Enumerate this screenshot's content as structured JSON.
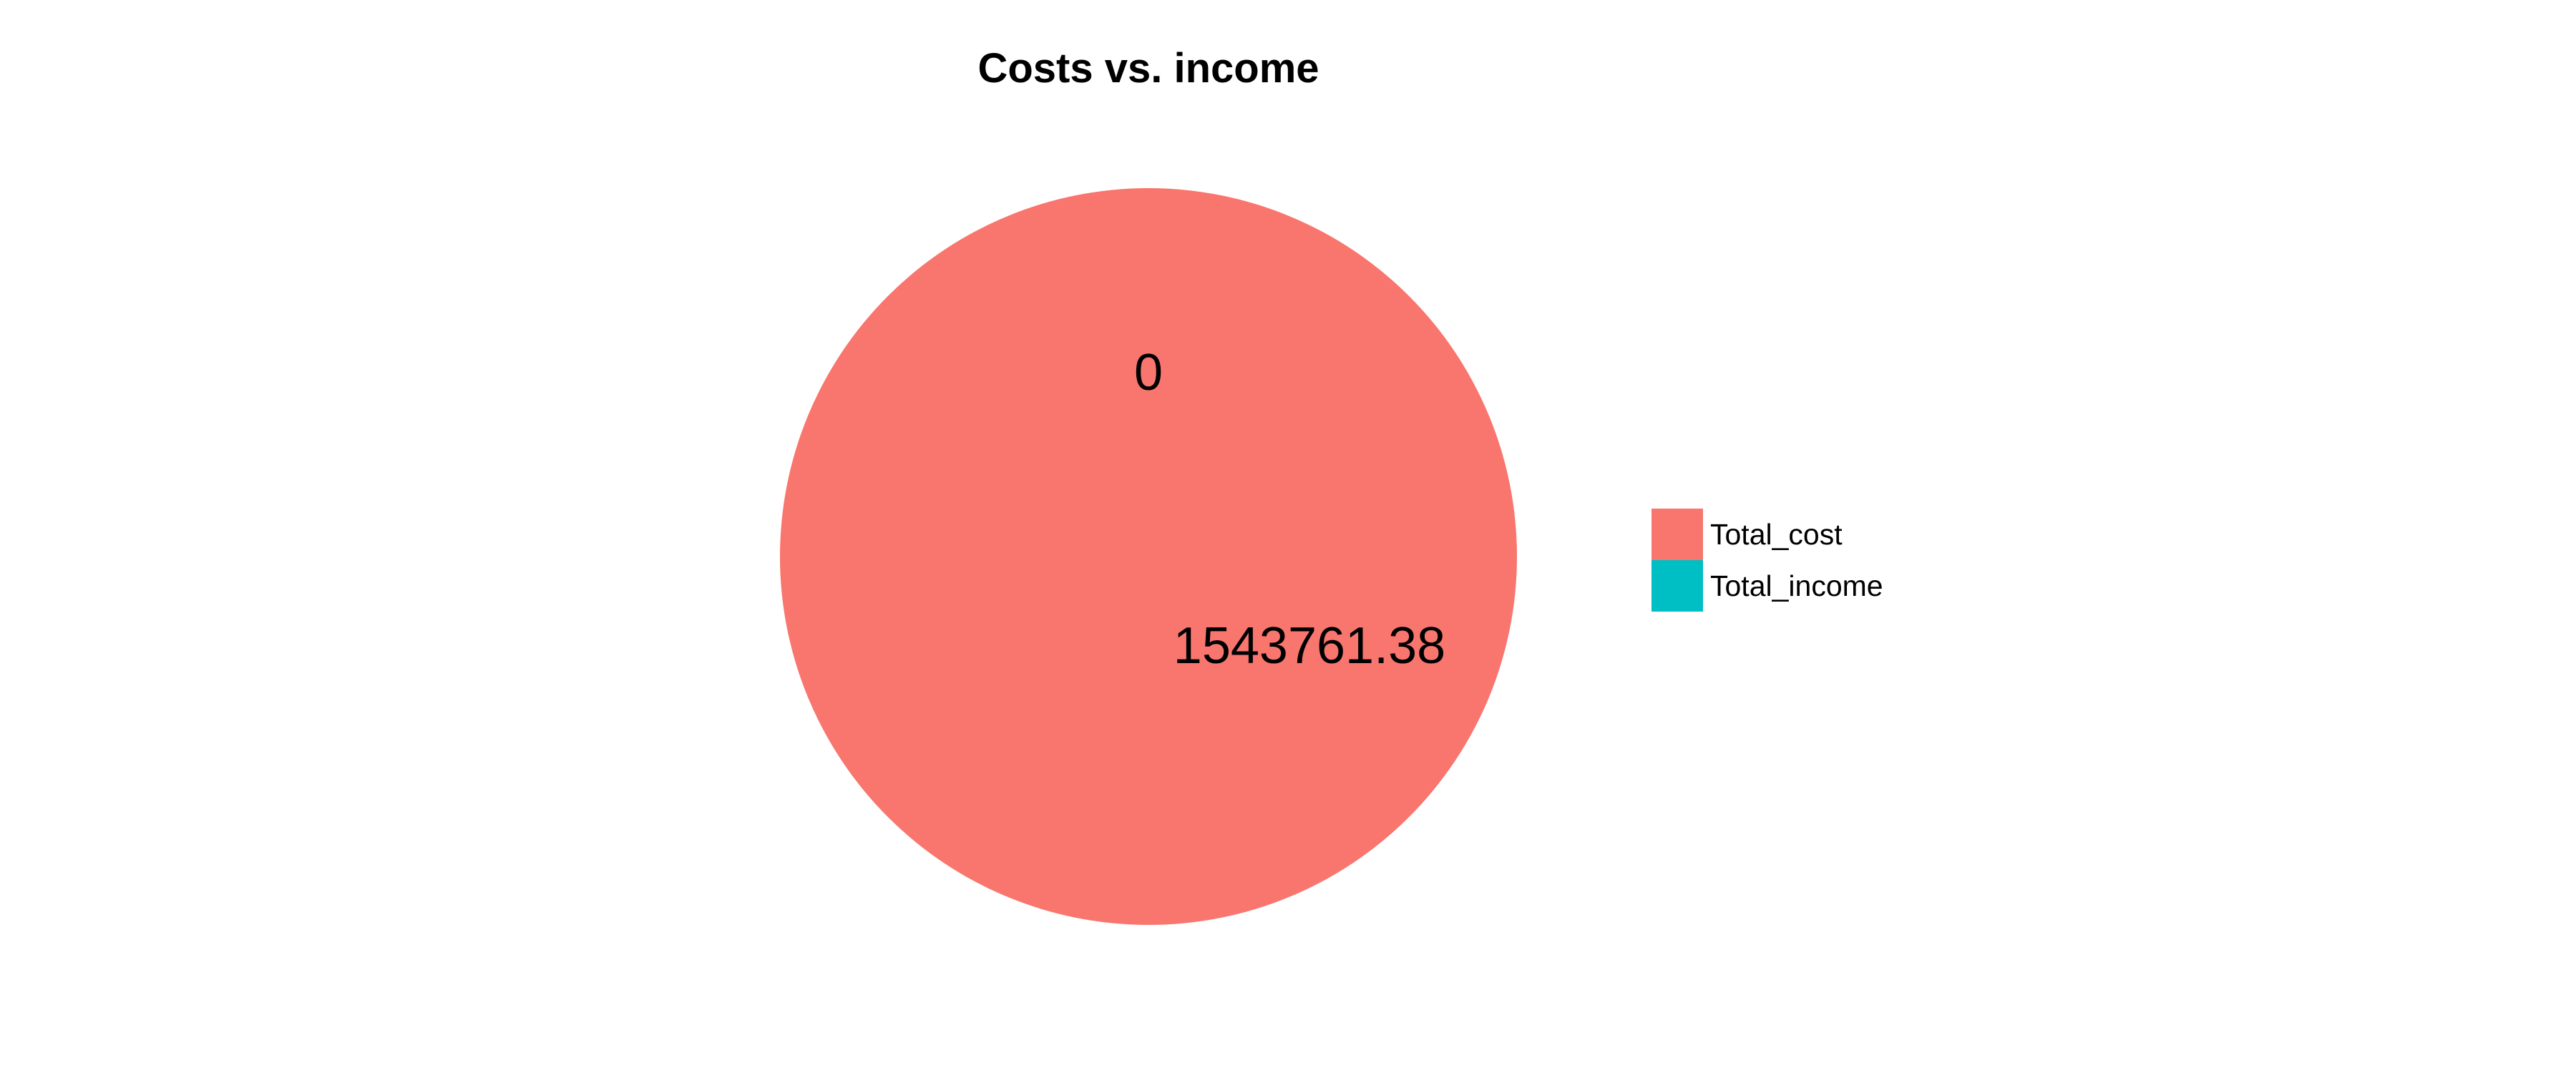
{
  "chart_data": {
    "type": "pie",
    "title": "Costs vs. income",
    "categories": [
      "Total_cost",
      "Total_income"
    ],
    "values": [
      1543761.38,
      0
    ],
    "data_labels": [
      "1543761.38",
      "0"
    ],
    "colors": [
      "#F8766D",
      "#00BFC4"
    ],
    "legend": {
      "placement": "right",
      "entries": [
        "Total_cost",
        "Total_income"
      ]
    }
  }
}
